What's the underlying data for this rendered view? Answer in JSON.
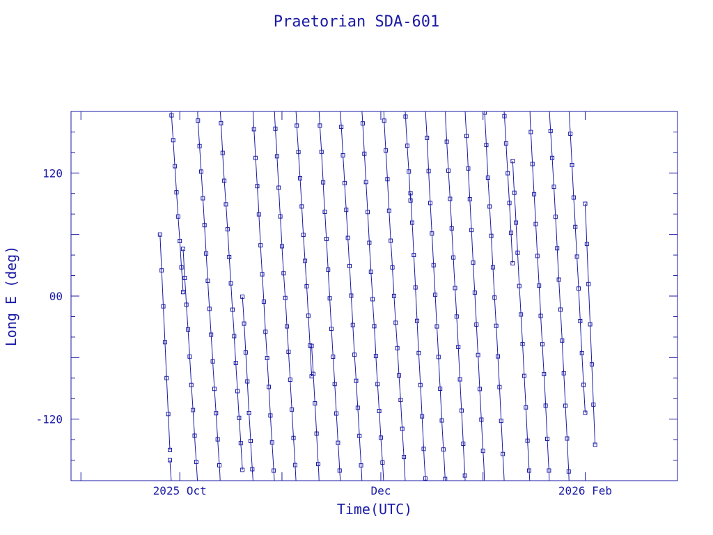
{
  "colors": {
    "ink": "#1a1aa6",
    "background": "#ffffff"
  },
  "chart_data": {
    "type": "scatter",
    "title": "Praetorian SDA-601",
    "xlabel": "Time(UTC)",
    "ylabel": "Long E (deg)",
    "x_axis": {
      "kind": "date",
      "range": [
        "2025-08-29",
        "2026-03-01"
      ],
      "tick_labels": [
        {
          "date": "2025-10-01",
          "label": "2025 Oct"
        },
        {
          "date": "2025-12-01",
          "label": "Dec"
        },
        {
          "date": "2026-02-01",
          "label": "2026 Feb"
        }
      ]
    },
    "y_axis": {
      "range": [
        -180,
        180
      ],
      "ticks": [
        -120,
        0,
        120
      ],
      "tick_labels": [
        "-120",
        "00",
        "120"
      ]
    },
    "grid": false,
    "marker": "open-square",
    "connected_with_line": true,
    "wrap_at": [
      -180,
      180
    ],
    "segments": [
      {
        "date_range": [
          "2025-09-25",
          "2025-09-28"
        ],
        "y_start": 60,
        "y_end": -150
      },
      {
        "date_range": [
          "2025-09-28",
          "2025-10-02"
        ],
        "drift_deg_per_day": -48
      },
      {
        "date_range": [
          "2025-10-02",
          "2025-10-20"
        ],
        "drift_deg_per_day": -52
      },
      {
        "date_range": [
          "2025-10-20",
          "2025-11-10"
        ],
        "drift_deg_per_day": -55
      },
      {
        "date_range": [
          "2025-11-10",
          "2025-12-10"
        ],
        "drift_deg_per_day": -55
      },
      {
        "date_range": [
          "2025-12-10",
          "2026-01-10"
        ],
        "drift_deg_per_day": -60
      },
      {
        "date_range": [
          "2026-01-10",
          "2026-02-01"
        ],
        "drift_deg_per_day": -60
      },
      {
        "date_range": [
          "2026-02-01",
          "2026-02-04"
        ],
        "y_start": 90,
        "y_end": -145
      }
    ]
  }
}
